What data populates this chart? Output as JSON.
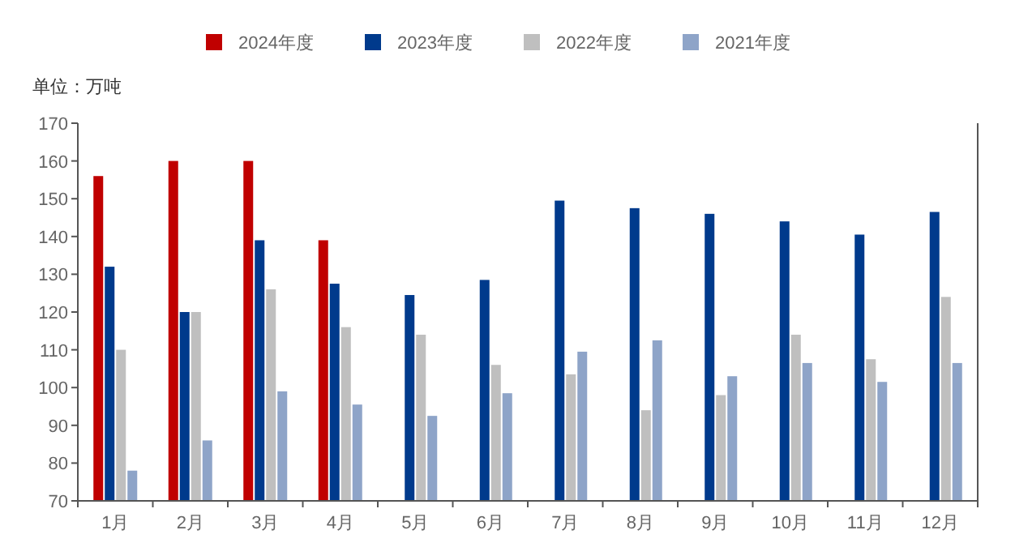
{
  "chart_data": {
    "type": "bar",
    "ylabel": "单位：万吨",
    "categories": [
      "1月",
      "2月",
      "3月",
      "4月",
      "5月",
      "6月",
      "7月",
      "8月",
      "9月",
      "10月",
      "11月",
      "12月"
    ],
    "series": [
      {
        "name": "2024年度",
        "color": "#c00000",
        "values": [
          156,
          160,
          160,
          139,
          null,
          null,
          null,
          null,
          null,
          null,
          null,
          null
        ]
      },
      {
        "name": "2023年度",
        "color": "#003a8c",
        "values": [
          132,
          120,
          139,
          127.5,
          124.5,
          128.5,
          149.5,
          147.5,
          146,
          144,
          140.5,
          146.5
        ]
      },
      {
        "name": "2022年度",
        "color": "#bfbfbf",
        "values": [
          110,
          120,
          126,
          116,
          114,
          106,
          103.5,
          94,
          98,
          114,
          107.5,
          124
        ]
      },
      {
        "name": "2021年度",
        "color": "#8ea4c8",
        "values": [
          78,
          86,
          99,
          95.5,
          92.5,
          98.5,
          109.5,
          112.5,
          103,
          106.5,
          101.5,
          106.5
        ]
      }
    ],
    "ylim": [
      70,
      170
    ],
    "yticks": [
      70,
      80,
      90,
      100,
      110,
      120,
      130,
      140,
      150,
      160,
      170
    ],
    "legend": "top"
  }
}
